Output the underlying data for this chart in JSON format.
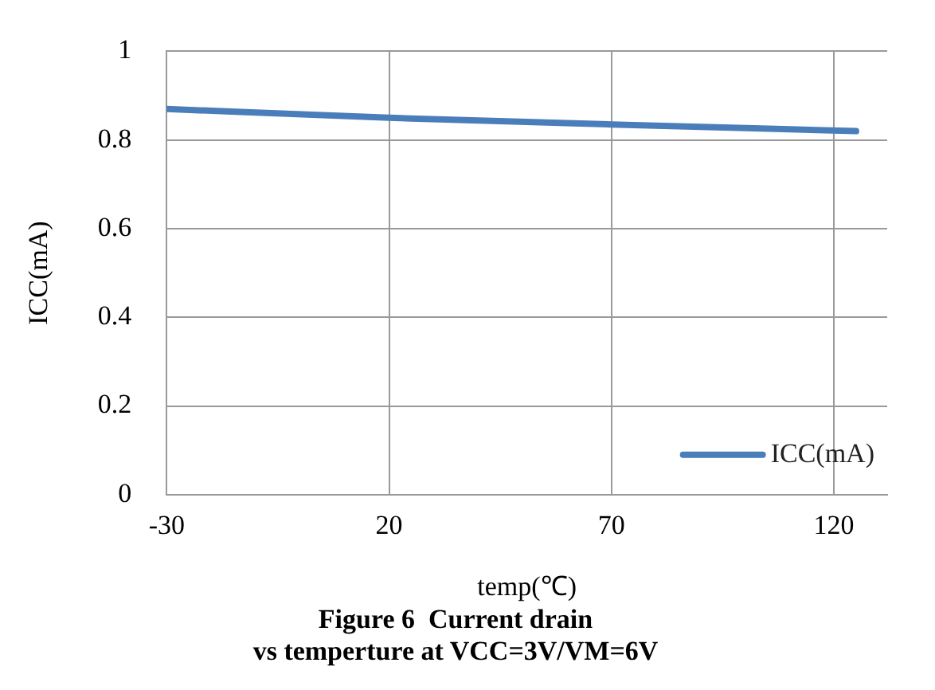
{
  "chart_data": {
    "type": "line",
    "title": "Figure 6  Current drain",
    "subtitle": "vs temperture at VCC=3V/VM=6V",
    "xlabel": "temp(℃)",
    "ylabel": "ICC(mA)",
    "xlim": [
      -30,
      132
    ],
    "xticks": [
      -30,
      20,
      70,
      120
    ],
    "ylim": [
      0,
      1
    ],
    "yticks": [
      0,
      0.2,
      0.4,
      0.6,
      0.8,
      1
    ],
    "series": [
      {
        "name": "ICC(mA)",
        "color": "#4a7ebb",
        "x": [
          -30,
          20,
          70,
          125
        ],
        "values": [
          0.87,
          0.85,
          0.835,
          0.82
        ]
      }
    ],
    "grid": true,
    "legend": "bottom right",
    "marker": "none",
    "line_style": "solid"
  }
}
